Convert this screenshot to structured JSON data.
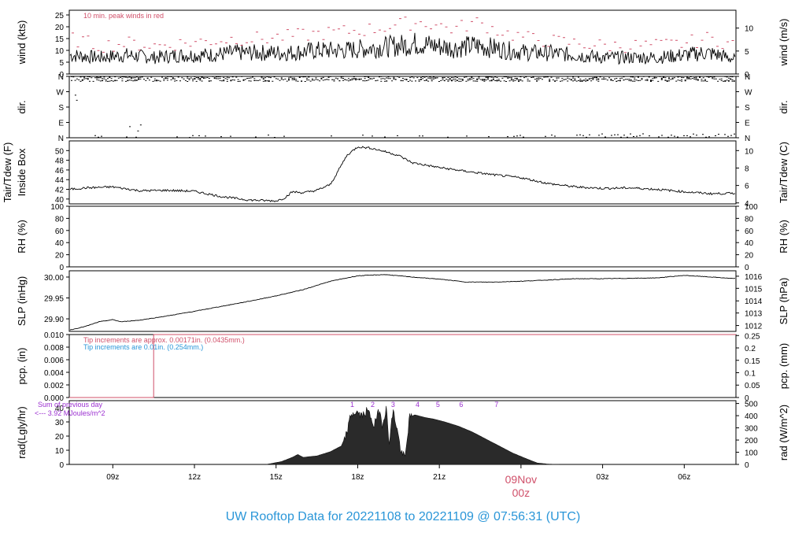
{
  "title": "UW Rooftop Data for 20221108  to  20221109 @ 07:56:31  (UTC)",
  "chart_data": {
    "type": "line",
    "x_axis": {
      "range_hours_utc": [
        7.4,
        31.9
      ],
      "ticks": [
        {
          "hour": 9,
          "label": "09z"
        },
        {
          "hour": 12,
          "label": "12z"
        },
        {
          "hour": 15,
          "label": "15z"
        },
        {
          "hour": 18,
          "label": "18z"
        },
        {
          "hour": 21,
          "label": "21z"
        },
        {
          "hour": 27,
          "label": "03z"
        },
        {
          "hour": 30,
          "label": "06z"
        }
      ],
      "day_marker": {
        "hour": 24,
        "label_line1": "09Nov",
        "label_line2": "00z",
        "color": "#d0506a"
      }
    },
    "panels": [
      {
        "id": "wind",
        "ylabel_left": "wind (kts)",
        "ylabel_right": "wind (m/s)",
        "ylim": [
          0,
          27
        ],
        "ticks_left": [
          0,
          5,
          10,
          15,
          20,
          25
        ],
        "ticks_right": [
          {
            "label": "0",
            "value": 0
          },
          {
            "label": "5",
            "value": 9.72
          },
          {
            "label": "10",
            "value": 19.44
          }
        ],
        "annotation": {
          "text": "10 min. peak winds in red",
          "color": "#d0506a"
        },
        "series": [
          {
            "name": "wind speed",
            "color": "#000000",
            "x": [
              7.4,
              8.5,
              9.5,
              10.5,
              11.5,
              12.5,
              13.5,
              14.5,
              15.5,
              16.5,
              17.5,
              18.5,
              19.5,
              20.2,
              20.8,
              21.5,
              22.3,
              23.0,
              23.5,
              24.3,
              25.0,
              26.0,
              27.0,
              28.0,
              29.0,
              30.0,
              30.8,
              31.3,
              31.9
            ],
            "y": [
              8,
              7,
              8,
              7,
              8,
              8,
              9,
              9,
              9,
              10,
              10,
              11,
              12,
              13,
              12,
              11,
              12,
              11,
              10,
              9,
              9,
              8,
              7,
              7,
              7,
              8,
              9,
              8,
              6
            ]
          },
          {
            "name": "peak wind",
            "color": "#d0506a",
            "x": [
              7.4,
              8.5,
              9.5,
              10.5,
              11.5,
              12.5,
              13.5,
              14.5,
              15.5,
              16.5,
              17.5,
              18.5,
              19.5,
              20.2,
              20.8,
              21.5,
              22.3,
              23.0,
              23.5,
              24.3,
              25.0,
              26.0,
              27.0,
              28.0,
              29.0,
              30.0,
              30.8,
              31.3,
              31.9
            ],
            "y": [
              15,
              12,
              13,
              12,
              13,
              14,
              15,
              15,
              16,
              17,
              18,
              19,
              21,
              22,
              21,
              19,
              22,
              19,
              17,
              15,
              14,
              13,
              12,
              12,
              12,
              13,
              15,
              14,
              12
            ]
          }
        ]
      },
      {
        "id": "dir",
        "ylabel_left": "dir.",
        "ylabel_right": "dir.",
        "ylim": [
          0,
          360
        ],
        "ticks_left": [
          {
            "label": "N",
            "value": 0
          },
          {
            "label": "E",
            "value": 90
          },
          {
            "label": "S",
            "value": 180
          },
          {
            "label": "W",
            "value": 270
          },
          {
            "label": "N",
            "value": 360
          }
        ],
        "ticks_right": [
          {
            "label": "N",
            "value": 0
          },
          {
            "label": "E",
            "value": 90
          },
          {
            "label": "S",
            "value": 180
          },
          {
            "label": "W",
            "value": 270
          },
          {
            "label": "N",
            "value": 360
          }
        ],
        "series": [
          {
            "name": "direction (northerly band)",
            "color": "#000000",
            "x_range": [
              7.4,
              31.9
            ],
            "y_range": [
              325,
              360
            ]
          },
          {
            "name": "direction (near north, low)",
            "color": "#000000",
            "x_range": [
              9.0,
              31.9
            ],
            "y_range": [
              0,
              30
            ]
          }
        ]
      },
      {
        "id": "temp",
        "ylabel_left_line1": "Tair/Tdew (F)",
        "ylabel_left_line2": "Inside Box",
        "ylabel_right": "Tair/Tdew (C)",
        "ylim": [
          39,
          52
        ],
        "ticks_left": [
          40,
          42,
          44,
          46,
          48,
          50
        ],
        "ticks_right": [
          {
            "label": "4",
            "value": 39.2
          },
          {
            "label": "6",
            "value": 42.8
          },
          {
            "label": "8",
            "value": 46.4
          },
          {
            "label": "10",
            "value": 50.0
          }
        ],
        "series": [
          {
            "name": "Tair",
            "color": "#000000",
            "x": [
              7.4,
              8.0,
              9.0,
              10.0,
              11.0,
              12.0,
              13.0,
              14.0,
              15.0,
              15.3,
              15.6,
              16.0,
              16.5,
              17.0,
              17.3,
              17.6,
              18.0,
              18.5,
              19.0,
              19.5,
              20.0,
              21.0,
              22.0,
              23.0,
              24.0,
              25.0,
              26.0,
              27.0,
              28.0,
              29.0,
              30.0,
              31.0,
              31.9
            ],
            "y": [
              42.0,
              42.3,
              42.5,
              41.7,
              41.8,
              41.6,
              40.5,
              39.8,
              39.6,
              40.2,
              41.5,
              41.3,
              41.8,
              43.0,
              46.0,
              49.0,
              50.8,
              50.5,
              49.8,
              49.0,
              47.5,
              46.5,
              45.7,
              45.0,
              44.4,
              43.2,
              42.5,
              42.2,
              42.3,
              42.0,
              41.5,
              41.1,
              41.2
            ]
          }
        ]
      },
      {
        "id": "rh",
        "ylabel_left": "RH (%)",
        "ylabel_right": "RH (%)",
        "ylim": [
          0,
          100
        ],
        "ticks_left": [
          0,
          20,
          40,
          60,
          80,
          100
        ],
        "ticks_right": [
          {
            "label": "0",
            "value": 0
          },
          {
            "label": "20",
            "value": 20
          },
          {
            "label": "40",
            "value": 40
          },
          {
            "label": "60",
            "value": 60
          },
          {
            "label": "80",
            "value": 80
          },
          {
            "label": "100",
            "value": 100
          }
        ],
        "series": []
      },
      {
        "id": "slp",
        "ylabel_left": "SLP (inHg)",
        "ylabel_right": "SLP (hPa)",
        "ylim": [
          29.87,
          30.015
        ],
        "ticks_left": [
          29.9,
          29.95,
          30.0
        ],
        "tick_labels_left": [
          "29.90",
          "29.95",
          "30.00"
        ],
        "ticks_right": [
          {
            "label": "1012",
            "value": 29.884
          },
          {
            "label": "1013",
            "value": 29.914
          },
          {
            "label": "1014",
            "value": 29.943
          },
          {
            "label": "1015",
            "value": 29.973
          },
          {
            "label": "1016",
            "value": 30.002
          }
        ],
        "series": [
          {
            "name": "SLP",
            "color": "#000000",
            "x": [
              7.4,
              8.0,
              8.5,
              9.0,
              9.3,
              10.0,
              11.0,
              12.0,
              13.0,
              14.0,
              15.0,
              16.0,
              17.0,
              18.0,
              19.0,
              20.0,
              21.0,
              22.0,
              23.0,
              24.0,
              25.0,
              26.0,
              27.0,
              28.0,
              29.0,
              30.0,
              31.0,
              31.9
            ],
            "y": [
              29.873,
              29.882,
              29.893,
              29.898,
              29.893,
              29.897,
              29.907,
              29.918,
              29.93,
              29.942,
              29.955,
              29.97,
              29.99,
              30.003,
              30.006,
              30.0,
              29.995,
              29.988,
              29.988,
              29.99,
              29.993,
              29.996,
              29.996,
              29.997,
              29.998,
              30.004,
              30.0,
              29.996
            ]
          }
        ]
      },
      {
        "id": "pcp",
        "ylabel_left": "pcp. (in)",
        "ylabel_right": "pcp. (mm)",
        "ylim": [
          0,
          0.01
        ],
        "ticks_left": [
          0.0,
          0.002,
          0.004,
          0.006,
          0.008,
          0.01
        ],
        "tick_labels_left": [
          "0.000",
          "0.002",
          "0.004",
          "0.006",
          "0.008",
          "0.010"
        ],
        "ticks_right": [
          {
            "label": "0",
            "value": 0
          },
          {
            "label": "0.05",
            "value": 0.001969
          },
          {
            "label": "0.1",
            "value": 0.003937
          },
          {
            "label": "0.15",
            "value": 0.005906
          },
          {
            "label": "0.2",
            "value": 0.007874
          },
          {
            "label": "0.25",
            "value": 0.009843
          }
        ],
        "annotations": [
          {
            "text": "Tip increments are approx. 0.00171in. (0.0435mm.)",
            "color": "#d0506a"
          },
          {
            "text": "Tip increments are 0.01in. (0.254mm.)",
            "color": "#2a96d8"
          }
        ],
        "series": [
          {
            "name": "precip step",
            "color": "#d0506a",
            "x": [
              7.4,
              10.5,
              10.5,
              31.9
            ],
            "y": [
              0.0,
              0.0,
              0.01,
              0.01
            ]
          }
        ]
      },
      {
        "id": "rad",
        "ylabel_left": "rad(Lgly/hr)",
        "ylabel_right": "rad (W/m^2)",
        "ylim": [
          0,
          45
        ],
        "ticks_left": [
          0,
          10,
          20,
          30,
          40
        ],
        "ticks_right": [
          {
            "label": "0",
            "value": 0
          },
          {
            "label": "100",
            "value": 8.6
          },
          {
            "label": "200",
            "value": 17.2
          },
          {
            "label": "300",
            "value": 25.8
          },
          {
            "label": "400",
            "value": 34.4
          },
          {
            "label": "500",
            "value": 43.0
          }
        ],
        "annotation_line1": {
          "text": "Sum of previous day",
          "color": "#9b30d0"
        },
        "annotation_line2": {
          "text": "<--- 3.92 MJoules/m^2",
          "color": "#9b30d0"
        },
        "hour_marks": [
          {
            "label": "1",
            "hour": 17.8
          },
          {
            "label": "2",
            "hour": 18.55
          },
          {
            "label": "3",
            "hour": 19.3
          },
          {
            "label": "4",
            "hour": 20.2
          },
          {
            "label": "5",
            "hour": 20.95
          },
          {
            "label": "6",
            "hour": 21.8
          },
          {
            "label": "7",
            "hour": 23.1
          }
        ],
        "series": [
          {
            "name": "solar radiation",
            "color": "#222222",
            "x": [
              14.65,
              15.2,
              15.6,
              15.8,
              16.0,
              16.5,
              17.0,
              17.4,
              17.6,
              17.75,
              17.95,
              18.15,
              18.35,
              18.5,
              18.6,
              18.8,
              18.9,
              19.05,
              19.15,
              19.3,
              19.45,
              19.6,
              19.75,
              19.9,
              20.1,
              20.3,
              20.5,
              20.8,
              21.2,
              21.7,
              22.2,
              22.7,
              23.2,
              23.7,
              24.2,
              24.6,
              25.0,
              25.4
            ],
            "y": [
              0,
              2,
              5,
              7,
              5,
              6,
              9,
              13,
              22,
              35,
              37,
              34,
              38,
              33,
              27,
              39,
              28,
              40,
              15,
              38,
              25,
              8,
              5,
              33,
              35,
              34,
              33,
              32,
              30,
              27,
              23,
              18,
              13,
              8,
              4,
              1,
              0.2,
              0
            ]
          }
        ]
      }
    ]
  }
}
